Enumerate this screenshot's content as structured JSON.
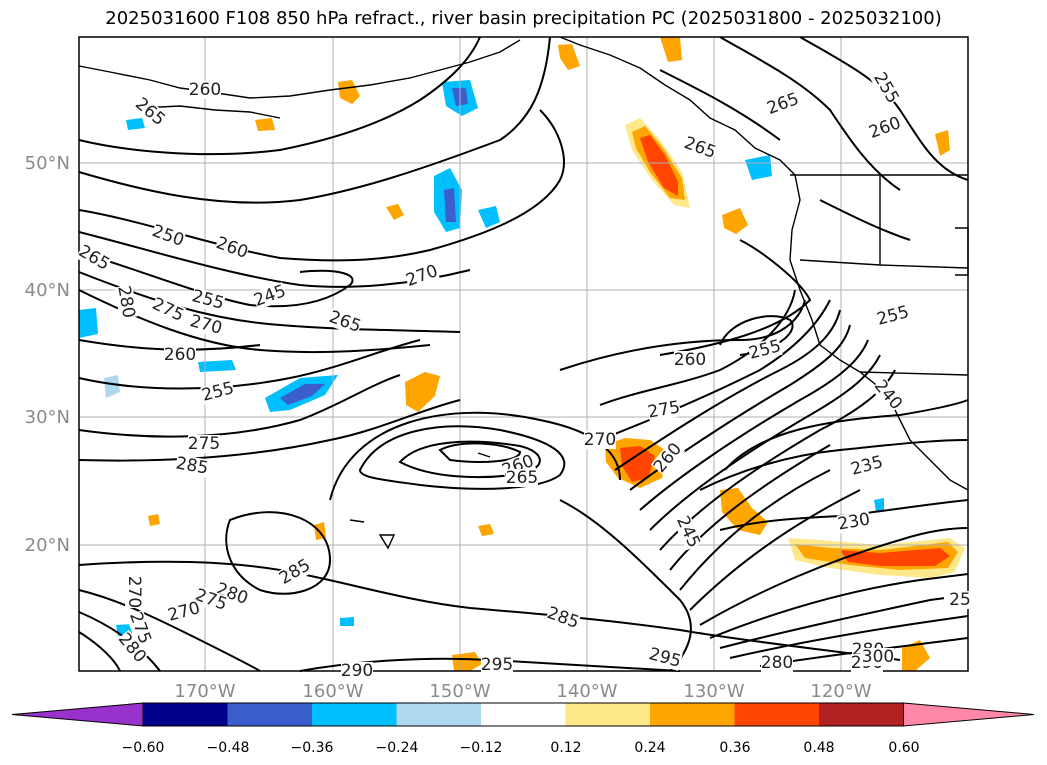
{
  "title": "2025031600 F108 850 hPa refract., river basin precipitation PC (2025031800 - 2025032100)",
  "lat_labels": [
    "50°N",
    "40°N",
    "30°N",
    "20°N"
  ],
  "lon_labels": [
    "170°W",
    "160°W",
    "150°W",
    "140°W",
    "130°W",
    "120°W"
  ],
  "contour_labels": [
    {
      "text": "260"
    },
    {
      "text": "265"
    },
    {
      "text": "250"
    },
    {
      "text": "260"
    },
    {
      "text": "265"
    },
    {
      "text": "280"
    },
    {
      "text": "275"
    },
    {
      "text": "255"
    },
    {
      "text": "270"
    },
    {
      "text": "245"
    },
    {
      "text": "265"
    },
    {
      "text": "260"
    },
    {
      "text": "255"
    },
    {
      "text": "270"
    },
    {
      "text": "275"
    },
    {
      "text": "285"
    },
    {
      "text": "260"
    },
    {
      "text": "265"
    },
    {
      "text": "270"
    },
    {
      "text": "260"
    },
    {
      "text": "275"
    },
    {
      "text": "260"
    },
    {
      "text": "255"
    },
    {
      "text": "265"
    },
    {
      "text": "265"
    },
    {
      "text": "255"
    },
    {
      "text": "260"
    },
    {
      "text": "255"
    },
    {
      "text": "240"
    },
    {
      "text": "235"
    },
    {
      "text": "230"
    },
    {
      "text": "245"
    },
    {
      "text": "285"
    },
    {
      "text": "280"
    },
    {
      "text": "275"
    },
    {
      "text": "270"
    },
    {
      "text": "270"
    },
    {
      "text": "275"
    },
    {
      "text": "280"
    },
    {
      "text": "285"
    },
    {
      "text": "290"
    },
    {
      "text": "295"
    },
    {
      "text": "295"
    },
    {
      "text": "280"
    },
    {
      "text": "280"
    },
    {
      "text": "290"
    },
    {
      "text": "300"
    },
    {
      "text": "25"
    }
  ],
  "colorbar": {
    "ticks": [
      "−0.60",
      "−0.48",
      "−0.36",
      "−0.24",
      "−0.12",
      "0.12",
      "0.24",
      "0.36",
      "0.48",
      "0.60"
    ],
    "colors": [
      "#9932cc",
      "#00008b",
      "#3a5fcd",
      "#00bfff",
      "#add8f0",
      "#ffffff",
      "#ffe88a",
      "#ffa500",
      "#ff4500",
      "#b22222",
      "#ff87a8"
    ]
  }
}
